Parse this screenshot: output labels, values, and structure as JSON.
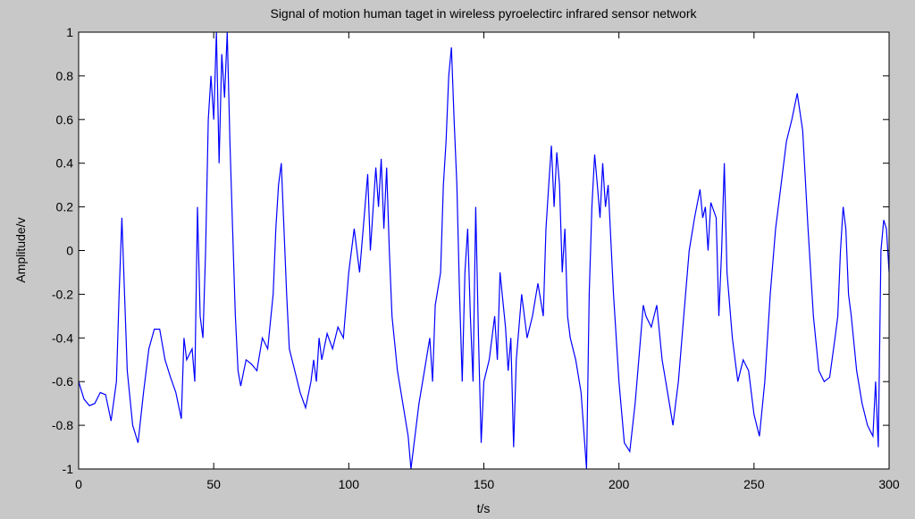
{
  "chart_data": {
    "type": "line",
    "title": "Signal of motion human taget in wireless pyroelectirc infrared sensor network",
    "xlabel": "t/s",
    "ylabel": "Amplitude/v",
    "color": "#0000ff",
    "xlim": [
      0,
      300
    ],
    "ylim": [
      -1,
      1
    ],
    "xticks": [
      0,
      50,
      100,
      150,
      200,
      250,
      300
    ],
    "yticks": [
      -1,
      -0.8,
      -0.6,
      -0.4,
      -0.2,
      0,
      0.2,
      0.4,
      0.6,
      0.8,
      1
    ],
    "x": [
      0,
      2,
      4,
      6,
      8,
      10,
      12,
      14,
      15,
      16,
      17,
      18,
      20,
      22,
      24,
      26,
      28,
      30,
      32,
      34,
      36,
      38,
      39,
      40,
      42,
      43,
      44,
      45,
      46,
      47,
      48,
      49,
      50,
      51,
      52,
      53,
      54,
      55,
      56,
      57,
      58,
      59,
      60,
      62,
      64,
      66,
      68,
      70,
      72,
      73,
      74,
      75,
      76,
      77,
      78,
      80,
      82,
      84,
      86,
      87,
      88,
      89,
      90,
      92,
      94,
      96,
      98,
      100,
      102,
      104,
      106,
      107,
      108,
      110,
      111,
      112,
      113,
      114,
      115,
      116,
      118,
      120,
      122,
      123,
      124,
      126,
      128,
      130,
      131,
      132,
      134,
      135,
      136,
      137,
      138,
      139,
      140,
      141,
      142,
      143,
      144,
      145,
      146,
      147,
      148,
      149,
      150,
      152,
      154,
      155,
      156,
      158,
      159,
      160,
      161,
      162,
      164,
      166,
      168,
      170,
      172,
      173,
      174,
      175,
      176,
      177,
      178,
      179,
      180,
      181,
      182,
      184,
      186,
      188,
      189,
      190,
      191,
      192,
      193,
      194,
      195,
      196,
      198,
      200,
      202,
      204,
      206,
      208,
      209,
      210,
      212,
      214,
      216,
      218,
      220,
      222,
      224,
      226,
      228,
      230,
      231,
      232,
      233,
      234,
      236,
      237,
      238,
      239,
      240,
      242,
      244,
      246,
      248,
      250,
      252,
      254,
      256,
      258,
      260,
      262,
      264,
      266,
      268,
      270,
      272,
      274,
      276,
      278,
      280,
      281,
      282,
      283,
      284,
      285,
      286,
      288,
      290,
      292,
      294,
      295,
      296,
      297,
      298,
      299,
      300
    ],
    "values": [
      -0.6,
      -0.68,
      -0.71,
      -0.7,
      -0.65,
      -0.66,
      -0.78,
      -0.6,
      -0.2,
      0.15,
      -0.2,
      -0.55,
      -0.8,
      -0.88,
      -0.65,
      -0.45,
      -0.36,
      -0.36,
      -0.5,
      -0.58,
      -0.65,
      -0.77,
      -0.4,
      -0.5,
      -0.45,
      -0.6,
      0.2,
      -0.3,
      -0.4,
      0.0,
      0.6,
      0.8,
      0.6,
      1.0,
      0.4,
      0.9,
      0.7,
      1.0,
      0.5,
      0.1,
      -0.3,
      -0.55,
      -0.62,
      -0.5,
      -0.52,
      -0.55,
      -0.4,
      -0.45,
      -0.2,
      0.1,
      0.3,
      0.4,
      0.1,
      -0.2,
      -0.45,
      -0.55,
      -0.65,
      -0.72,
      -0.6,
      -0.5,
      -0.6,
      -0.4,
      -0.5,
      -0.38,
      -0.45,
      -0.35,
      -0.4,
      -0.1,
      0.1,
      -0.1,
      0.2,
      0.35,
      0.0,
      0.38,
      0.2,
      0.42,
      0.1,
      0.38,
      0.0,
      -0.3,
      -0.55,
      -0.7,
      -0.85,
      -1.0,
      -0.9,
      -0.7,
      -0.55,
      -0.4,
      -0.6,
      -0.25,
      -0.1,
      0.3,
      0.5,
      0.8,
      0.93,
      0.6,
      0.3,
      -0.2,
      -0.6,
      -0.1,
      0.1,
      -0.3,
      -0.6,
      0.2,
      -0.4,
      -0.88,
      -0.6,
      -0.5,
      -0.3,
      -0.5,
      -0.1,
      -0.35,
      -0.55,
      -0.4,
      -0.9,
      -0.5,
      -0.2,
      -0.4,
      -0.3,
      -0.15,
      -0.3,
      0.1,
      0.3,
      0.48,
      0.2,
      0.45,
      0.3,
      -0.1,
      0.1,
      -0.3,
      -0.4,
      -0.5,
      -0.65,
      -1.0,
      -0.2,
      0.2,
      0.44,
      0.3,
      0.15,
      0.4,
      0.2,
      0.3,
      -0.2,
      -0.6,
      -0.88,
      -0.92,
      -0.7,
      -0.4,
      -0.25,
      -0.3,
      -0.35,
      -0.25,
      -0.5,
      -0.65,
      -0.8,
      -0.6,
      -0.3,
      0.0,
      0.15,
      0.28,
      0.15,
      0.2,
      0.0,
      0.22,
      0.15,
      -0.3,
      0.0,
      0.4,
      -0.1,
      -0.4,
      -0.6,
      -0.5,
      -0.55,
      -0.75,
      -0.85,
      -0.6,
      -0.2,
      0.1,
      0.3,
      0.5,
      0.6,
      0.72,
      0.55,
      0.1,
      -0.3,
      -0.55,
      -0.6,
      -0.58,
      -0.4,
      -0.3,
      0.0,
      0.2,
      0.1,
      -0.2,
      -0.3,
      -0.55,
      -0.7,
      -0.8,
      -0.85,
      -0.6,
      -0.9,
      0.0,
      0.14,
      0.1,
      -0.1
    ]
  }
}
